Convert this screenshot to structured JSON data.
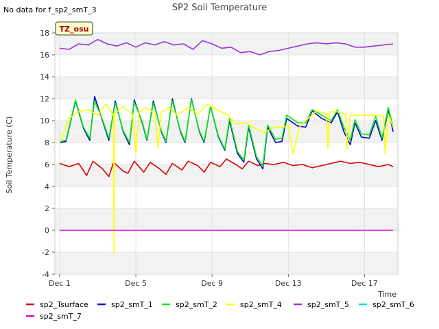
{
  "chart_data": {
    "type": "line",
    "title": "SP2 Soil Temperature",
    "note": "No data for f_sp2_smT_3",
    "badge": "TZ_osu",
    "xlabel": "Time",
    "ylabel": "Soil Temperature (C)",
    "x_range": [
      "2023-11-30T18:00",
      "2023-12-18T18:00"
    ],
    "ylim": [
      -4,
      18
    ],
    "yticks": [
      -4,
      -2,
      0,
      2,
      4,
      6,
      8,
      10,
      12,
      14,
      16,
      18
    ],
    "xticks": [
      {
        "date": "2023-12-01",
        "label": "Dec 1"
      },
      {
        "date": "2023-12-05",
        "label": "Dec 5"
      },
      {
        "date": "2023-12-09",
        "label": "Dec 9"
      },
      {
        "date": "2023-12-13",
        "label": "Dec 13"
      },
      {
        "date": "2023-12-17",
        "label": "Dec 17"
      }
    ],
    "grid": true,
    "legend_position": "bottom",
    "series": [
      {
        "name": "sp2_Tsurface",
        "color": "#dd0000",
        "data": [
          [
            "2023-12-01T00:00",
            6.1
          ],
          [
            "2023-12-01T12:00",
            5.8
          ],
          [
            "2023-12-02T00:00",
            6.1
          ],
          [
            "2023-12-02T10:00",
            5.0
          ],
          [
            "2023-12-02T18:00",
            6.3
          ],
          [
            "2023-12-03T06:00",
            5.6
          ],
          [
            "2023-12-03T14:00",
            4.9
          ],
          [
            "2023-12-03T20:00",
            6.2
          ],
          [
            "2023-12-04T08:00",
            5.4
          ],
          [
            "2023-12-04T14:00",
            5.2
          ],
          [
            "2023-12-04T22:00",
            6.3
          ],
          [
            "2023-12-05T10:00",
            5.3
          ],
          [
            "2023-12-05T18:00",
            6.2
          ],
          [
            "2023-12-06T06:00",
            5.6
          ],
          [
            "2023-12-06T14:00",
            5.1
          ],
          [
            "2023-12-06T22:00",
            6.1
          ],
          [
            "2023-12-07T10:00",
            5.5
          ],
          [
            "2023-12-07T18:00",
            6.3
          ],
          [
            "2023-12-08T06:00",
            5.9
          ],
          [
            "2023-12-08T14:00",
            5.3
          ],
          [
            "2023-12-08T22:00",
            6.2
          ],
          [
            "2023-12-09T10:00",
            5.8
          ],
          [
            "2023-12-09T18:00",
            6.5
          ],
          [
            "2023-12-10T06:00",
            6.0
          ],
          [
            "2023-12-10T14:00",
            5.6
          ],
          [
            "2023-12-10T22:00",
            6.3
          ],
          [
            "2023-12-11T10:00",
            5.9
          ],
          [
            "2023-12-11T18:00",
            6.1
          ],
          [
            "2023-12-12T06:00",
            6.0
          ],
          [
            "2023-12-12T18:00",
            6.2
          ],
          [
            "2023-12-13T06:00",
            5.9
          ],
          [
            "2023-12-13T18:00",
            6.0
          ],
          [
            "2023-12-14T06:00",
            5.7
          ],
          [
            "2023-12-14T18:00",
            5.9
          ],
          [
            "2023-12-15T06:00",
            6.1
          ],
          [
            "2023-12-15T18:00",
            6.3
          ],
          [
            "2023-12-16T06:00",
            6.1
          ],
          [
            "2023-12-16T18:00",
            6.2
          ],
          [
            "2023-12-17T06:00",
            6.0
          ],
          [
            "2023-12-17T18:00",
            5.8
          ],
          [
            "2023-12-18T06:00",
            6.0
          ],
          [
            "2023-12-18T12:00",
            5.8
          ]
        ]
      },
      {
        "name": "sp2_smT_1",
        "color": "#0000dd",
        "data": [
          [
            "2023-12-01T00:00",
            8.0
          ],
          [
            "2023-12-01T08:00",
            8.1
          ],
          [
            "2023-12-01T20:00",
            11.8
          ],
          [
            "2023-12-02T06:00",
            9.3
          ],
          [
            "2023-12-02T14:00",
            8.2
          ],
          [
            "2023-12-02T20:00",
            12.2
          ],
          [
            "2023-12-03T06:00",
            10.0
          ],
          [
            "2023-12-03T14:00",
            8.2
          ],
          [
            "2023-12-03T22:00",
            11.8
          ],
          [
            "2023-12-04T08:00",
            9.0
          ],
          [
            "2023-12-04T16:00",
            7.8
          ],
          [
            "2023-12-04T22:00",
            11.9
          ],
          [
            "2023-12-05T08:00",
            9.8
          ],
          [
            "2023-12-05T14:00",
            8.2
          ],
          [
            "2023-12-05T22:00",
            11.8
          ],
          [
            "2023-12-06T08:00",
            9.0
          ],
          [
            "2023-12-06T14:00",
            8.0
          ],
          [
            "2023-12-06T22:00",
            12.0
          ],
          [
            "2023-12-07T08:00",
            9.0
          ],
          [
            "2023-12-07T14:00",
            8.0
          ],
          [
            "2023-12-07T22:00",
            12.0
          ],
          [
            "2023-12-08T08:00",
            9.0
          ],
          [
            "2023-12-08T14:00",
            8.0
          ],
          [
            "2023-12-08T22:00",
            11.3
          ],
          [
            "2023-12-09T08:00",
            8.5
          ],
          [
            "2023-12-09T16:00",
            7.3
          ],
          [
            "2023-12-09T22:00",
            10.0
          ],
          [
            "2023-12-10T08:00",
            7.0
          ],
          [
            "2023-12-10T16:00",
            6.2
          ],
          [
            "2023-12-10T22:00",
            9.4
          ],
          [
            "2023-12-11T08:00",
            6.5
          ],
          [
            "2023-12-11T16:00",
            5.6
          ],
          [
            "2023-12-11T22:00",
            9.4
          ],
          [
            "2023-12-12T08:00",
            8.0
          ],
          [
            "2023-12-12T16:00",
            8.1
          ],
          [
            "2023-12-12T22:00",
            10.2
          ],
          [
            "2023-12-13T12:00",
            9.5
          ],
          [
            "2023-12-13T22:00",
            9.4
          ],
          [
            "2023-12-14T06:00",
            10.9
          ],
          [
            "2023-12-14T18:00",
            10.2
          ],
          [
            "2023-12-15T06:00",
            9.8
          ],
          [
            "2023-12-15T14:00",
            10.8
          ],
          [
            "2023-12-15T22:00",
            9.0
          ],
          [
            "2023-12-16T06:00",
            7.8
          ],
          [
            "2023-12-16T12:00",
            9.8
          ],
          [
            "2023-12-16T20:00",
            8.5
          ],
          [
            "2023-12-17T06:00",
            8.4
          ],
          [
            "2023-12-17T14:00",
            10.0
          ],
          [
            "2023-12-17T22:00",
            8.2
          ],
          [
            "2023-12-18T06:00",
            11.0
          ],
          [
            "2023-12-18T12:00",
            9.0
          ]
        ]
      },
      {
        "name": "sp2_smT_2",
        "color": "#00ee00",
        "data": [
          [
            "2023-12-01T00:00",
            8.1
          ],
          [
            "2023-12-01T08:00",
            8.2
          ],
          [
            "2023-12-01T20:00",
            11.9
          ],
          [
            "2023-12-02T06:00",
            9.4
          ],
          [
            "2023-12-02T14:00",
            8.4
          ],
          [
            "2023-12-02T20:00",
            11.8
          ],
          [
            "2023-12-03T06:00",
            10.1
          ],
          [
            "2023-12-03T14:00",
            8.4
          ],
          [
            "2023-12-03T22:00",
            11.6
          ],
          [
            "2023-12-04T08:00",
            9.1
          ],
          [
            "2023-12-04T16:00",
            8.0
          ],
          [
            "2023-12-04T22:00",
            11.7
          ],
          [
            "2023-12-05T08:00",
            9.9
          ],
          [
            "2023-12-05T14:00",
            8.3
          ],
          [
            "2023-12-05T22:00",
            11.6
          ],
          [
            "2023-12-06T08:00",
            9.1
          ],
          [
            "2023-12-06T14:00",
            8.1
          ],
          [
            "2023-12-06T22:00",
            11.8
          ],
          [
            "2023-12-07T08:00",
            9.1
          ],
          [
            "2023-12-07T14:00",
            8.1
          ],
          [
            "2023-12-07T22:00",
            11.9
          ],
          [
            "2023-12-08T08:00",
            9.1
          ],
          [
            "2023-12-08T14:00",
            8.1
          ],
          [
            "2023-12-08T22:00",
            11.3
          ],
          [
            "2023-12-09T08:00",
            8.6
          ],
          [
            "2023-12-09T16:00",
            7.4
          ],
          [
            "2023-12-09T22:00",
            10.2
          ],
          [
            "2023-12-10T08:00",
            7.2
          ],
          [
            "2023-12-10T16:00",
            6.4
          ],
          [
            "2023-12-10T22:00",
            9.6
          ],
          [
            "2023-12-11T08:00",
            6.7
          ],
          [
            "2023-12-11T16:00",
            5.9
          ],
          [
            "2023-12-11T22:00",
            9.6
          ],
          [
            "2023-12-12T08:00",
            8.3
          ],
          [
            "2023-12-12T16:00",
            8.4
          ],
          [
            "2023-12-12T22:00",
            10.5
          ],
          [
            "2023-12-13T12:00",
            9.8
          ],
          [
            "2023-12-13T22:00",
            9.8
          ],
          [
            "2023-12-14T06:00",
            11.0
          ],
          [
            "2023-12-14T18:00",
            10.5
          ],
          [
            "2023-12-15T06:00",
            10.0
          ],
          [
            "2023-12-15T14:00",
            11.0
          ],
          [
            "2023-12-15T22:00",
            9.4
          ],
          [
            "2023-12-16T06:00",
            8.2
          ],
          [
            "2023-12-16T12:00",
            10.1
          ],
          [
            "2023-12-16T20:00",
            8.8
          ],
          [
            "2023-12-17T06:00",
            8.7
          ],
          [
            "2023-12-17T14:00",
            10.4
          ],
          [
            "2023-12-17T22:00",
            8.4
          ],
          [
            "2023-12-18T06:00",
            11.2
          ],
          [
            "2023-12-18T12:00",
            9.4
          ]
        ]
      },
      {
        "name": "sp2_smT_4",
        "color": "#ffff00",
        "data": [
          [
            "2023-12-01T00:00",
            8.0
          ],
          [
            "2023-12-01T12:00",
            10.2
          ],
          [
            "2023-12-02T00:00",
            10.8
          ],
          [
            "2023-12-02T12:00",
            11.0
          ],
          [
            "2023-12-03T00:00",
            10.5
          ],
          [
            "2023-12-03T10:00",
            11.5
          ],
          [
            "2023-12-03T20:00",
            10.5
          ],
          [
            "2023-12-03T20:30",
            -2.1
          ],
          [
            "2023-12-03T21:00",
            10.6
          ],
          [
            "2023-12-04T08:00",
            11.3
          ],
          [
            "2023-12-04T20:00",
            10.5
          ],
          [
            "2023-12-05T00:00",
            7.0
          ],
          [
            "2023-12-05T04:00",
            10.8
          ],
          [
            "2023-12-05T14:00",
            11.2
          ],
          [
            "2023-12-06T00:00",
            10.6
          ],
          [
            "2023-12-06T04:00",
            7.5
          ],
          [
            "2023-12-06T08:00",
            10.8
          ],
          [
            "2023-12-06T18:00",
            11.2
          ],
          [
            "2023-12-07T04:00",
            10.5
          ],
          [
            "2023-12-07T18:00",
            11.2
          ],
          [
            "2023-12-08T06:00",
            10.6
          ],
          [
            "2023-12-08T18:00",
            11.5
          ],
          [
            "2023-12-09T06:00",
            11.0
          ],
          [
            "2023-12-09T20:00",
            10.5
          ],
          [
            "2023-12-10T06:00",
            9.7
          ],
          [
            "2023-12-10T18:00",
            9.8
          ],
          [
            "2023-12-11T06:00",
            9.3
          ],
          [
            "2023-12-11T18:00",
            8.9
          ],
          [
            "2023-12-12T06:00",
            9.4
          ],
          [
            "2023-12-12T18:00",
            9.4
          ],
          [
            "2023-12-13T00:00",
            9.6
          ],
          [
            "2023-12-13T06:00",
            7.0
          ],
          [
            "2023-12-13T14:00",
            9.4
          ],
          [
            "2023-12-13T22:00",
            10.0
          ],
          [
            "2023-12-14T12:00",
            10.9
          ],
          [
            "2023-12-15T00:00",
            10.6
          ],
          [
            "2023-12-15T02:00",
            7.5
          ],
          [
            "2023-12-15T04:00",
            10.8
          ],
          [
            "2023-12-15T14:00",
            10.8
          ],
          [
            "2023-12-16T00:00",
            10.6
          ],
          [
            "2023-12-16T02:00",
            7.5
          ],
          [
            "2023-12-16T06:00",
            10.5
          ],
          [
            "2023-12-17T00:00",
            10.5
          ],
          [
            "2023-12-17T12:00",
            10.5
          ],
          [
            "2023-12-18T00:00",
            10.4
          ],
          [
            "2023-12-18T02:00",
            7.0
          ],
          [
            "2023-12-18T06:00",
            10.6
          ],
          [
            "2023-12-18T12:00",
            9.4
          ]
        ]
      },
      {
        "name": "sp2_smT_5",
        "color": "#9933dd",
        "data": [
          [
            "2023-12-01T00:00",
            16.6
          ],
          [
            "2023-12-01T12:00",
            16.5
          ],
          [
            "2023-12-02T00:00",
            17.0
          ],
          [
            "2023-12-02T12:00",
            16.9
          ],
          [
            "2023-12-03T00:00",
            17.4
          ],
          [
            "2023-12-03T12:00",
            17.0
          ],
          [
            "2023-12-04T00:00",
            16.8
          ],
          [
            "2023-12-04T12:00",
            17.1
          ],
          [
            "2023-12-05T00:00",
            16.7
          ],
          [
            "2023-12-05T12:00",
            17.1
          ],
          [
            "2023-12-06T00:00",
            16.9
          ],
          [
            "2023-12-06T12:00",
            17.2
          ],
          [
            "2023-12-07T00:00",
            16.9
          ],
          [
            "2023-12-07T12:00",
            17.0
          ],
          [
            "2023-12-08T00:00",
            16.5
          ],
          [
            "2023-12-08T12:00",
            17.3
          ],
          [
            "2023-12-09T00:00",
            17.0
          ],
          [
            "2023-12-09T12:00",
            16.6
          ],
          [
            "2023-12-10T00:00",
            16.7
          ],
          [
            "2023-12-10T12:00",
            16.2
          ],
          [
            "2023-12-11T00:00",
            16.3
          ],
          [
            "2023-12-11T12:00",
            16.0
          ],
          [
            "2023-12-12T00:00",
            16.3
          ],
          [
            "2023-12-12T12:00",
            16.4
          ],
          [
            "2023-12-13T00:00",
            16.6
          ],
          [
            "2023-12-13T12:00",
            16.8
          ],
          [
            "2023-12-14T00:00",
            17.0
          ],
          [
            "2023-12-14T12:00",
            17.1
          ],
          [
            "2023-12-15T00:00",
            17.0
          ],
          [
            "2023-12-15T12:00",
            17.1
          ],
          [
            "2023-12-16T00:00",
            17.0
          ],
          [
            "2023-12-16T12:00",
            16.7
          ],
          [
            "2023-12-17T00:00",
            16.7
          ],
          [
            "2023-12-17T12:00",
            16.8
          ],
          [
            "2023-12-18T00:00",
            16.9
          ],
          [
            "2023-12-18T12:00",
            17.0
          ]
        ]
      },
      {
        "name": "sp2_smT_6",
        "color": "#00dddd",
        "data": []
      },
      {
        "name": "sp2_smT_7",
        "color": "#dd00dd",
        "data": [
          [
            "2023-12-01T00:00",
            0.0
          ],
          [
            "2023-12-18T12:00",
            0.0
          ]
        ]
      }
    ]
  }
}
